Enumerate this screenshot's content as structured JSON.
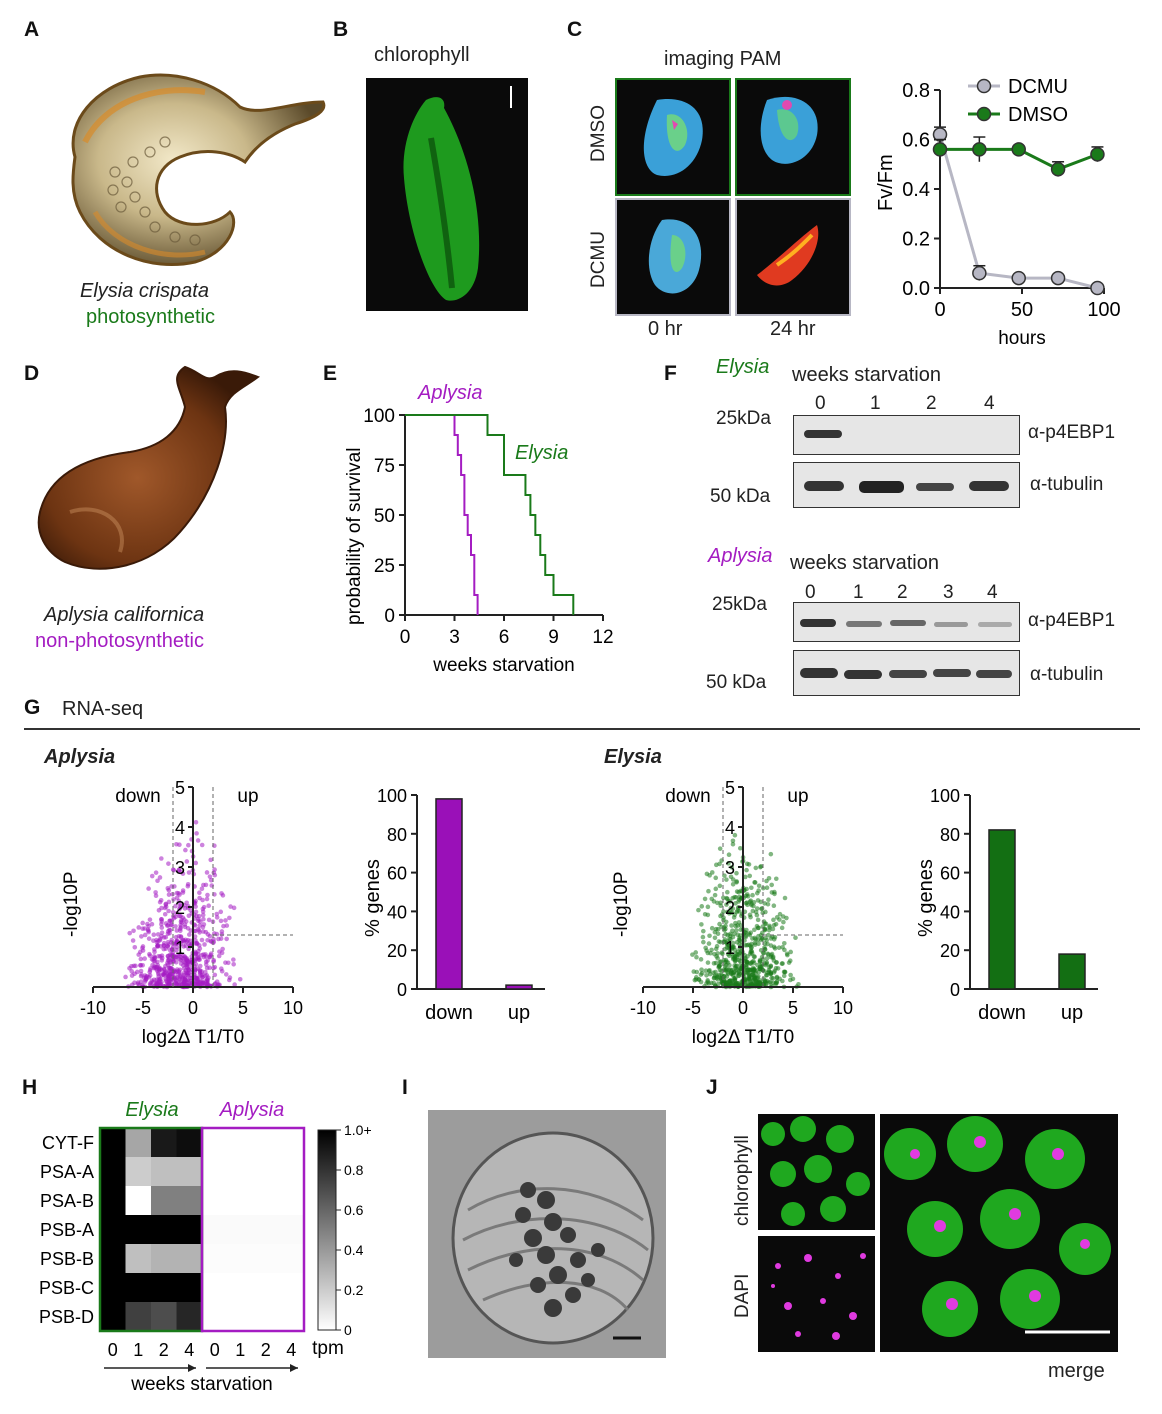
{
  "labels": {
    "A": "A",
    "B": "B",
    "C": "C",
    "D": "D",
    "E": "E",
    "F": "F",
    "G": "G",
    "H": "H",
    "I": "I",
    "J": "J"
  },
  "panelA": {
    "species": "Elysia crispata",
    "type": "photosynthetic"
  },
  "panelB": {
    "title": "chlorophyll"
  },
  "panelC": {
    "title": "imaging PAM",
    "row_labels": [
      "DMSO",
      "DCMU"
    ],
    "col_labels": [
      "0 hr",
      "24 hr"
    ],
    "chart_data": {
      "type": "line",
      "xlabel": "hours",
      "ylabel": "Fv/Fm",
      "xlim": [
        0,
        100
      ],
      "ylim": [
        0,
        0.8
      ],
      "xticks": [
        0,
        50,
        100
      ],
      "yticks": [
        0.0,
        0.2,
        0.4,
        0.6,
        0.8
      ],
      "series": [
        {
          "name": "DCMU",
          "color": "#b7b7c4",
          "x": [
            0,
            24,
            48,
            72,
            96
          ],
          "y": [
            0.62,
            0.06,
            0.04,
            0.04,
            0.0
          ],
          "err": [
            0.03,
            0.03,
            0.01,
            0.01,
            0.01
          ]
        },
        {
          "name": "DMSO",
          "color": "#1a7a1a",
          "x": [
            0,
            24,
            48,
            72,
            96
          ],
          "y": [
            0.56,
            0.56,
            0.56,
            0.48,
            0.54
          ],
          "err": [
            0.04,
            0.05,
            0.01,
            0.03,
            0.03
          ]
        }
      ]
    }
  },
  "panelD": {
    "species": "Aplysia californica",
    "type": "non-photosynthetic"
  },
  "panelE": {
    "chart_data": {
      "type": "line",
      "xlabel": "weeks starvation",
      "ylabel": "probability of survival",
      "xlim": [
        0,
        12
      ],
      "ylim": [
        0,
        100
      ],
      "xticks": [
        0,
        3,
        6,
        9,
        12
      ],
      "yticks": [
        0,
        25,
        50,
        75,
        100
      ],
      "series": [
        {
          "name": "Aplysia",
          "color": "#a41cc2",
          "x": [
            0,
            3.0,
            3.0,
            3.2,
            3.2,
            3.4,
            3.4,
            3.6,
            3.6,
            3.8,
            3.8,
            4.0,
            4.0,
            4.2,
            4.2,
            4.4,
            4.4
          ],
          "y": [
            100,
            100,
            90,
            90,
            80,
            80,
            70,
            70,
            50,
            50,
            40,
            40,
            30,
            30,
            10,
            10,
            0
          ]
        },
        {
          "name": "Elysia",
          "color": "#1a7a1a",
          "x": [
            0,
            5.0,
            5.0,
            6.0,
            6.0,
            7.3,
            7.3,
            7.6,
            7.6,
            7.9,
            7.9,
            8.2,
            8.2,
            8.5,
            8.5,
            9.0,
            9.0,
            10.2,
            10.2
          ],
          "y": [
            100,
            100,
            90,
            90,
            70,
            70,
            60,
            60,
            50,
            50,
            40,
            40,
            30,
            30,
            20,
            20,
            10,
            10,
            0
          ]
        }
      ]
    }
  },
  "panelF": {
    "elysia": {
      "species": "Elysia",
      "header": "weeks starvation",
      "lanes": [
        "0",
        "1",
        "2",
        "4"
      ],
      "markers": [
        "25kDa",
        "50 kDa"
      ],
      "antibodies": [
        "α-p4EBP1",
        "α-tubulin"
      ]
    },
    "aplysia": {
      "species": "Aplysia",
      "header": "weeks starvation",
      "lanes": [
        "0",
        "1",
        "2",
        "3",
        "4"
      ],
      "markers": [
        "25kDa",
        "50 kDa"
      ],
      "antibodies": [
        "α-p4EBP1",
        "α-tubulin"
      ]
    }
  },
  "panelG": {
    "title": "RNA-seq",
    "aplysia": {
      "species": "Aplysia",
      "volcano": {
        "chart_data": {
          "type": "scatter",
          "xlabel": "log2Δ T1/T0",
          "ylabel": "-log10P",
          "xlim": [
            -10,
            10
          ],
          "ylim": [
            0,
            5
          ],
          "xticks": [
            -10,
            -5,
            0,
            5,
            10
          ],
          "yticks": [
            1,
            2,
            3,
            4,
            5
          ],
          "color": "#a41cc2",
          "annotations": [
            "down",
            "up"
          ]
        }
      },
      "bar": {
        "chart_data": {
          "type": "bar",
          "categories": [
            "down",
            "up"
          ],
          "values": [
            98,
            2
          ],
          "ylabel": "% genes",
          "ylim": [
            0,
            100
          ],
          "yticks": [
            0,
            20,
            40,
            60,
            80,
            100
          ],
          "color": "#9a10b8"
        }
      }
    },
    "elysia": {
      "species": "Elysia",
      "volcano": {
        "chart_data": {
          "type": "scatter",
          "xlabel": "log2Δ T1/T0",
          "ylabel": "-log10P",
          "xlim": [
            -10,
            10
          ],
          "ylim": [
            0,
            5
          ],
          "xticks": [
            -10,
            -5,
            0,
            5,
            10
          ],
          "yticks": [
            1,
            2,
            3,
            4,
            5
          ],
          "color": "#1a7a1a",
          "annotations": [
            "down",
            "up"
          ]
        }
      },
      "bar": {
        "chart_data": {
          "type": "bar",
          "categories": [
            "down",
            "up"
          ],
          "values": [
            82,
            18
          ],
          "ylabel": "% genes",
          "ylim": [
            0,
            100
          ],
          "yticks": [
            0,
            20,
            40,
            60,
            80,
            100
          ],
          "color": "#136f13"
        }
      }
    }
  },
  "panelH": {
    "chart_data": {
      "type": "heatmap",
      "rows": [
        "CYT-F",
        "PSA-A",
        "PSA-B",
        "PSB-A",
        "PSB-B",
        "PSB-C",
        "PSB-D"
      ],
      "groups": [
        "Elysia",
        "Aplysia"
      ],
      "columns": [
        "0",
        "1",
        "2",
        "4"
      ],
      "xlabel": "weeks starvation",
      "colorbar": {
        "label": "tpm",
        "ticks": [
          "0",
          "0.2",
          "0.4",
          "0.6",
          "0.8",
          "1.0+"
        ]
      },
      "elysia": [
        [
          1,
          0.35,
          0.9,
          0.95
        ],
        [
          1,
          0.2,
          0.25,
          0.25
        ],
        [
          1,
          0,
          0.5,
          0.5
        ],
        [
          1,
          1,
          1,
          1
        ],
        [
          1,
          0.25,
          0.3,
          0.3
        ],
        [
          1,
          1,
          1,
          1
        ],
        [
          1,
          0.75,
          0.7,
          0.85
        ]
      ],
      "aplysia": [
        [
          0,
          0,
          0,
          0
        ],
        [
          0,
          0,
          0,
          0
        ],
        [
          0,
          0,
          0,
          0
        ],
        [
          0.02,
          0.02,
          0.02,
          0.02
        ],
        [
          0.01,
          0.01,
          0.01,
          0.01
        ],
        [
          0,
          0,
          0,
          0
        ],
        [
          0,
          0,
          0,
          0
        ]
      ]
    }
  },
  "panelJ": {
    "labels": [
      "chlorophyll",
      "DAPI",
      "merge"
    ]
  }
}
